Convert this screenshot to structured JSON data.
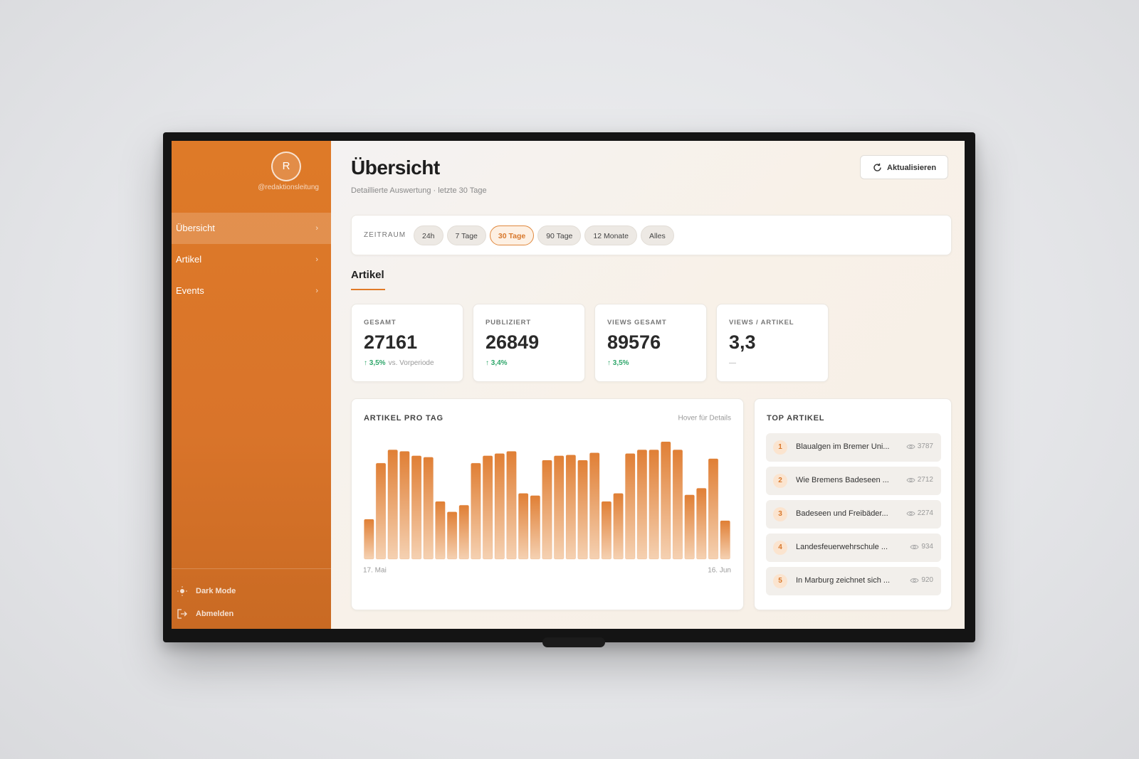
{
  "sidebar": {
    "avatar": "R",
    "handle": "@redaktionsleitung",
    "nav": [
      "Übersicht",
      "Artikel",
      "Events"
    ],
    "dark_mode": "Dark Mode",
    "logout": "Abmelden"
  },
  "header": {
    "title": "Übersicht",
    "subtitle": "Detaillierte Auswertung · letzte 30 Tage",
    "refresh": "Aktualisieren"
  },
  "filter": {
    "label": "ZEITRAUM",
    "options": [
      "24h",
      "7 Tage",
      "30 Tage",
      "90 Tage",
      "12 Monate",
      "Alles"
    ]
  },
  "section_title": "Artikel",
  "kpis": [
    {
      "label": "GESAMT",
      "value": "27161",
      "delta": "3,5%",
      "note": "vs. Vorperiode"
    },
    {
      "label": "PUBLIZIERT",
      "value": "26849",
      "delta": "3,4%"
    },
    {
      "label": "VIEWS GESAMT",
      "value": "89576",
      "delta": "3,5%"
    },
    {
      "label": "VIEWS / ARTIKEL",
      "value": "3,3",
      "delta": "—"
    }
  ],
  "chart_data": {
    "type": "bar",
    "title": "ARTIKEL PRO TAG",
    "annotation": "Hover für Details",
    "categories": [
      "17. Mai",
      null,
      null,
      null,
      null,
      null,
      null,
      null,
      null,
      null,
      null,
      null,
      null,
      null,
      null,
      null,
      null,
      null,
      null,
      null,
      null,
      null,
      null,
      null,
      null,
      null,
      null,
      null,
      null,
      null,
      "16. Jun"
    ],
    "values": [
      54,
      130,
      148,
      146,
      140,
      138,
      78,
      64,
      73,
      130,
      140,
      143,
      146,
      89,
      86,
      134,
      140,
      141,
      134,
      144,
      78,
      89,
      143,
      148,
      148,
      159,
      148,
      87,
      96,
      136,
      52
    ],
    "color": "#e07f35"
  },
  "top_articles": {
    "title": "TOP ARTIKEL",
    "items": [
      {
        "rank": "1",
        "title": "Blaualgen im Bremer Uni...",
        "views": "3787"
      },
      {
        "rank": "2",
        "title": "Wie Bremens Badeseen ...",
        "views": "2712"
      },
      {
        "rank": "3",
        "title": "Badeseen und Freibäder...",
        "views": "2274"
      },
      {
        "rank": "4",
        "title": "Landesfeuerwehrschule ...",
        "views": "934"
      },
      {
        "rank": "5",
        "title": "In Marburg zeichnet sich ...",
        "views": "920"
      }
    ]
  }
}
